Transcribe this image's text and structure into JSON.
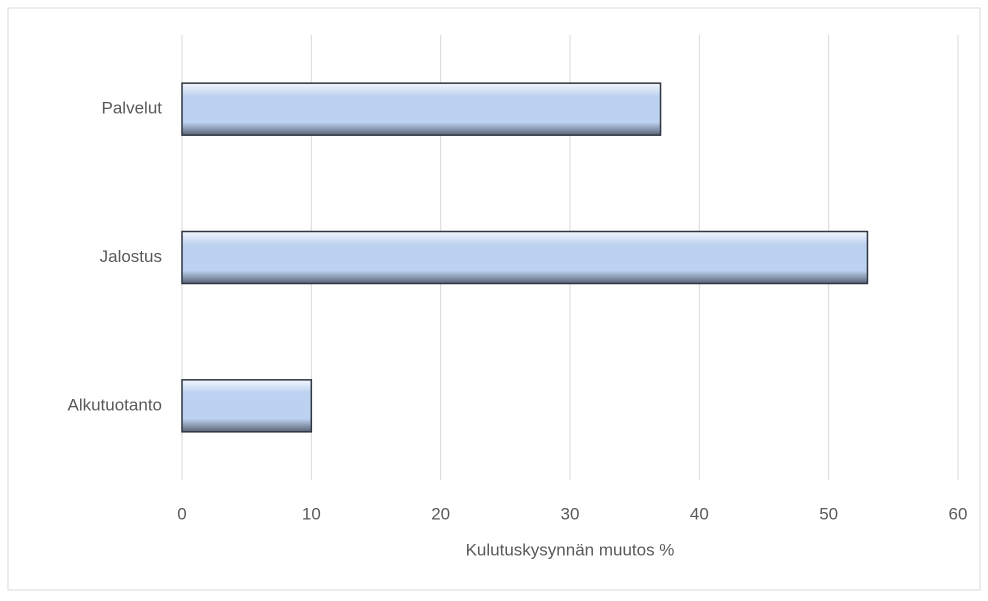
{
  "chart_data": {
    "type": "bar",
    "orientation": "horizontal",
    "x_label": "Kulutuskysynnän muutos %",
    "categories": [
      "Alkutuotanto",
      "Jalostus",
      "Palvelut"
    ],
    "values": [
      10,
      53,
      37
    ],
    "color": "#bdd2f0",
    "xlim": [
      0,
      60
    ],
    "xticks": [
      0,
      10,
      20,
      30,
      40,
      50,
      60
    ],
    "grid": true
  }
}
